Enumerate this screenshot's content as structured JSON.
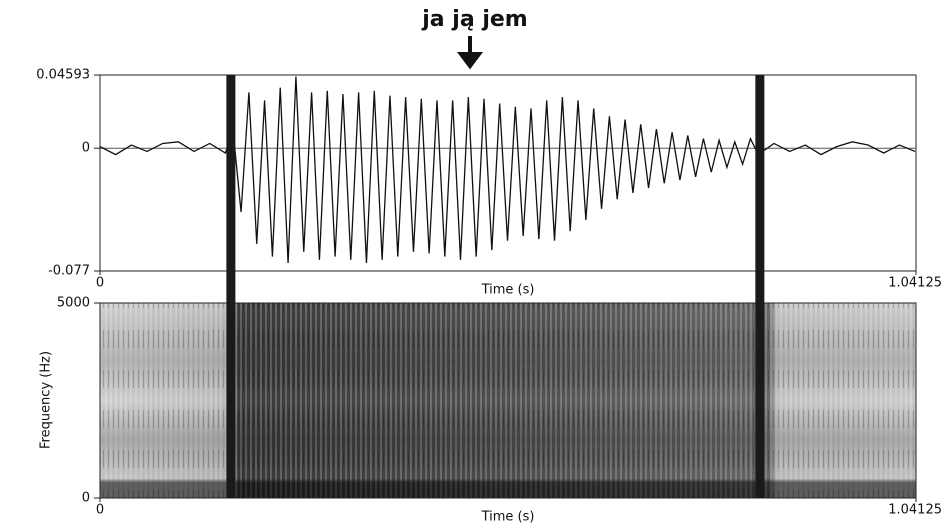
{
  "chart_data": [
    {
      "type": "line",
      "title": "ja ją jem",
      "xlabel": "Time (s)",
      "color": "#111111",
      "xlim": [
        0,
        1.04125
      ],
      "xticks": [
        0,
        1.04125
      ],
      "ylim": [
        -0.077,
        0.04593
      ],
      "yticks": [
        -0.077,
        0,
        0.04593
      ],
      "zero_line": true,
      "selection": [
        0.167,
        0.842
      ],
      "x": [
        0,
        0.02,
        0.04,
        0.06,
        0.08,
        0.1,
        0.12,
        0.14,
        0.16,
        0.17,
        0.18,
        0.19,
        0.2,
        0.21,
        0.22,
        0.23,
        0.24,
        0.25,
        0.26,
        0.27,
        0.28,
        0.29,
        0.3,
        0.31,
        0.32,
        0.33,
        0.34,
        0.35,
        0.36,
        0.37,
        0.38,
        0.39,
        0.4,
        0.41,
        0.42,
        0.43,
        0.44,
        0.45,
        0.46,
        0.47,
        0.48,
        0.49,
        0.5,
        0.51,
        0.52,
        0.53,
        0.54,
        0.55,
        0.56,
        0.57,
        0.58,
        0.59,
        0.6,
        0.61,
        0.62,
        0.63,
        0.64,
        0.65,
        0.66,
        0.67,
        0.68,
        0.69,
        0.7,
        0.71,
        0.72,
        0.73,
        0.74,
        0.75,
        0.76,
        0.77,
        0.78,
        0.79,
        0.8,
        0.81,
        0.82,
        0.83,
        0.84,
        0.86,
        0.88,
        0.9,
        0.92,
        0.94,
        0.96,
        0.98,
        1.0,
        1.02,
        1.04
      ],
      "values": [
        0.001,
        -0.004,
        0.002,
        -0.002,
        0.003,
        0.004,
        -0.002,
        0.003,
        -0.003,
        0.01,
        -0.04,
        0.035,
        -0.06,
        0.03,
        -0.068,
        0.038,
        -0.072,
        0.045,
        -0.065,
        0.035,
        -0.07,
        0.036,
        -0.068,
        0.034,
        -0.07,
        0.035,
        -0.072,
        0.036,
        -0.07,
        0.033,
        -0.068,
        0.032,
        -0.065,
        0.031,
        -0.066,
        0.03,
        -0.068,
        0.03,
        -0.07,
        0.032,
        -0.068,
        0.031,
        -0.064,
        0.028,
        -0.058,
        0.026,
        -0.055,
        0.025,
        -0.057,
        0.03,
        -0.058,
        0.032,
        -0.052,
        0.03,
        -0.045,
        0.025,
        -0.038,
        0.02,
        -0.032,
        0.018,
        -0.028,
        0.015,
        -0.025,
        0.012,
        -0.022,
        0.01,
        -0.02,
        0.008,
        -0.018,
        0.006,
        -0.015,
        0.005,
        -0.012,
        0.004,
        -0.01,
        0.006,
        -0.004,
        0.003,
        -0.002,
        0.002,
        -0.004,
        0.001,
        0.004,
        0.002,
        -0.003,
        0.002,
        -0.002
      ]
    },
    {
      "type": "spectrogram",
      "xlabel": "Time (s)",
      "ylabel": "Frequency (Hz)",
      "xlim": [
        0,
        1.04125
      ],
      "xticks": [
        0,
        1.04125
      ],
      "ylim": [
        0,
        5000
      ],
      "yticks": [
        0,
        5000
      ]
    }
  ]
}
